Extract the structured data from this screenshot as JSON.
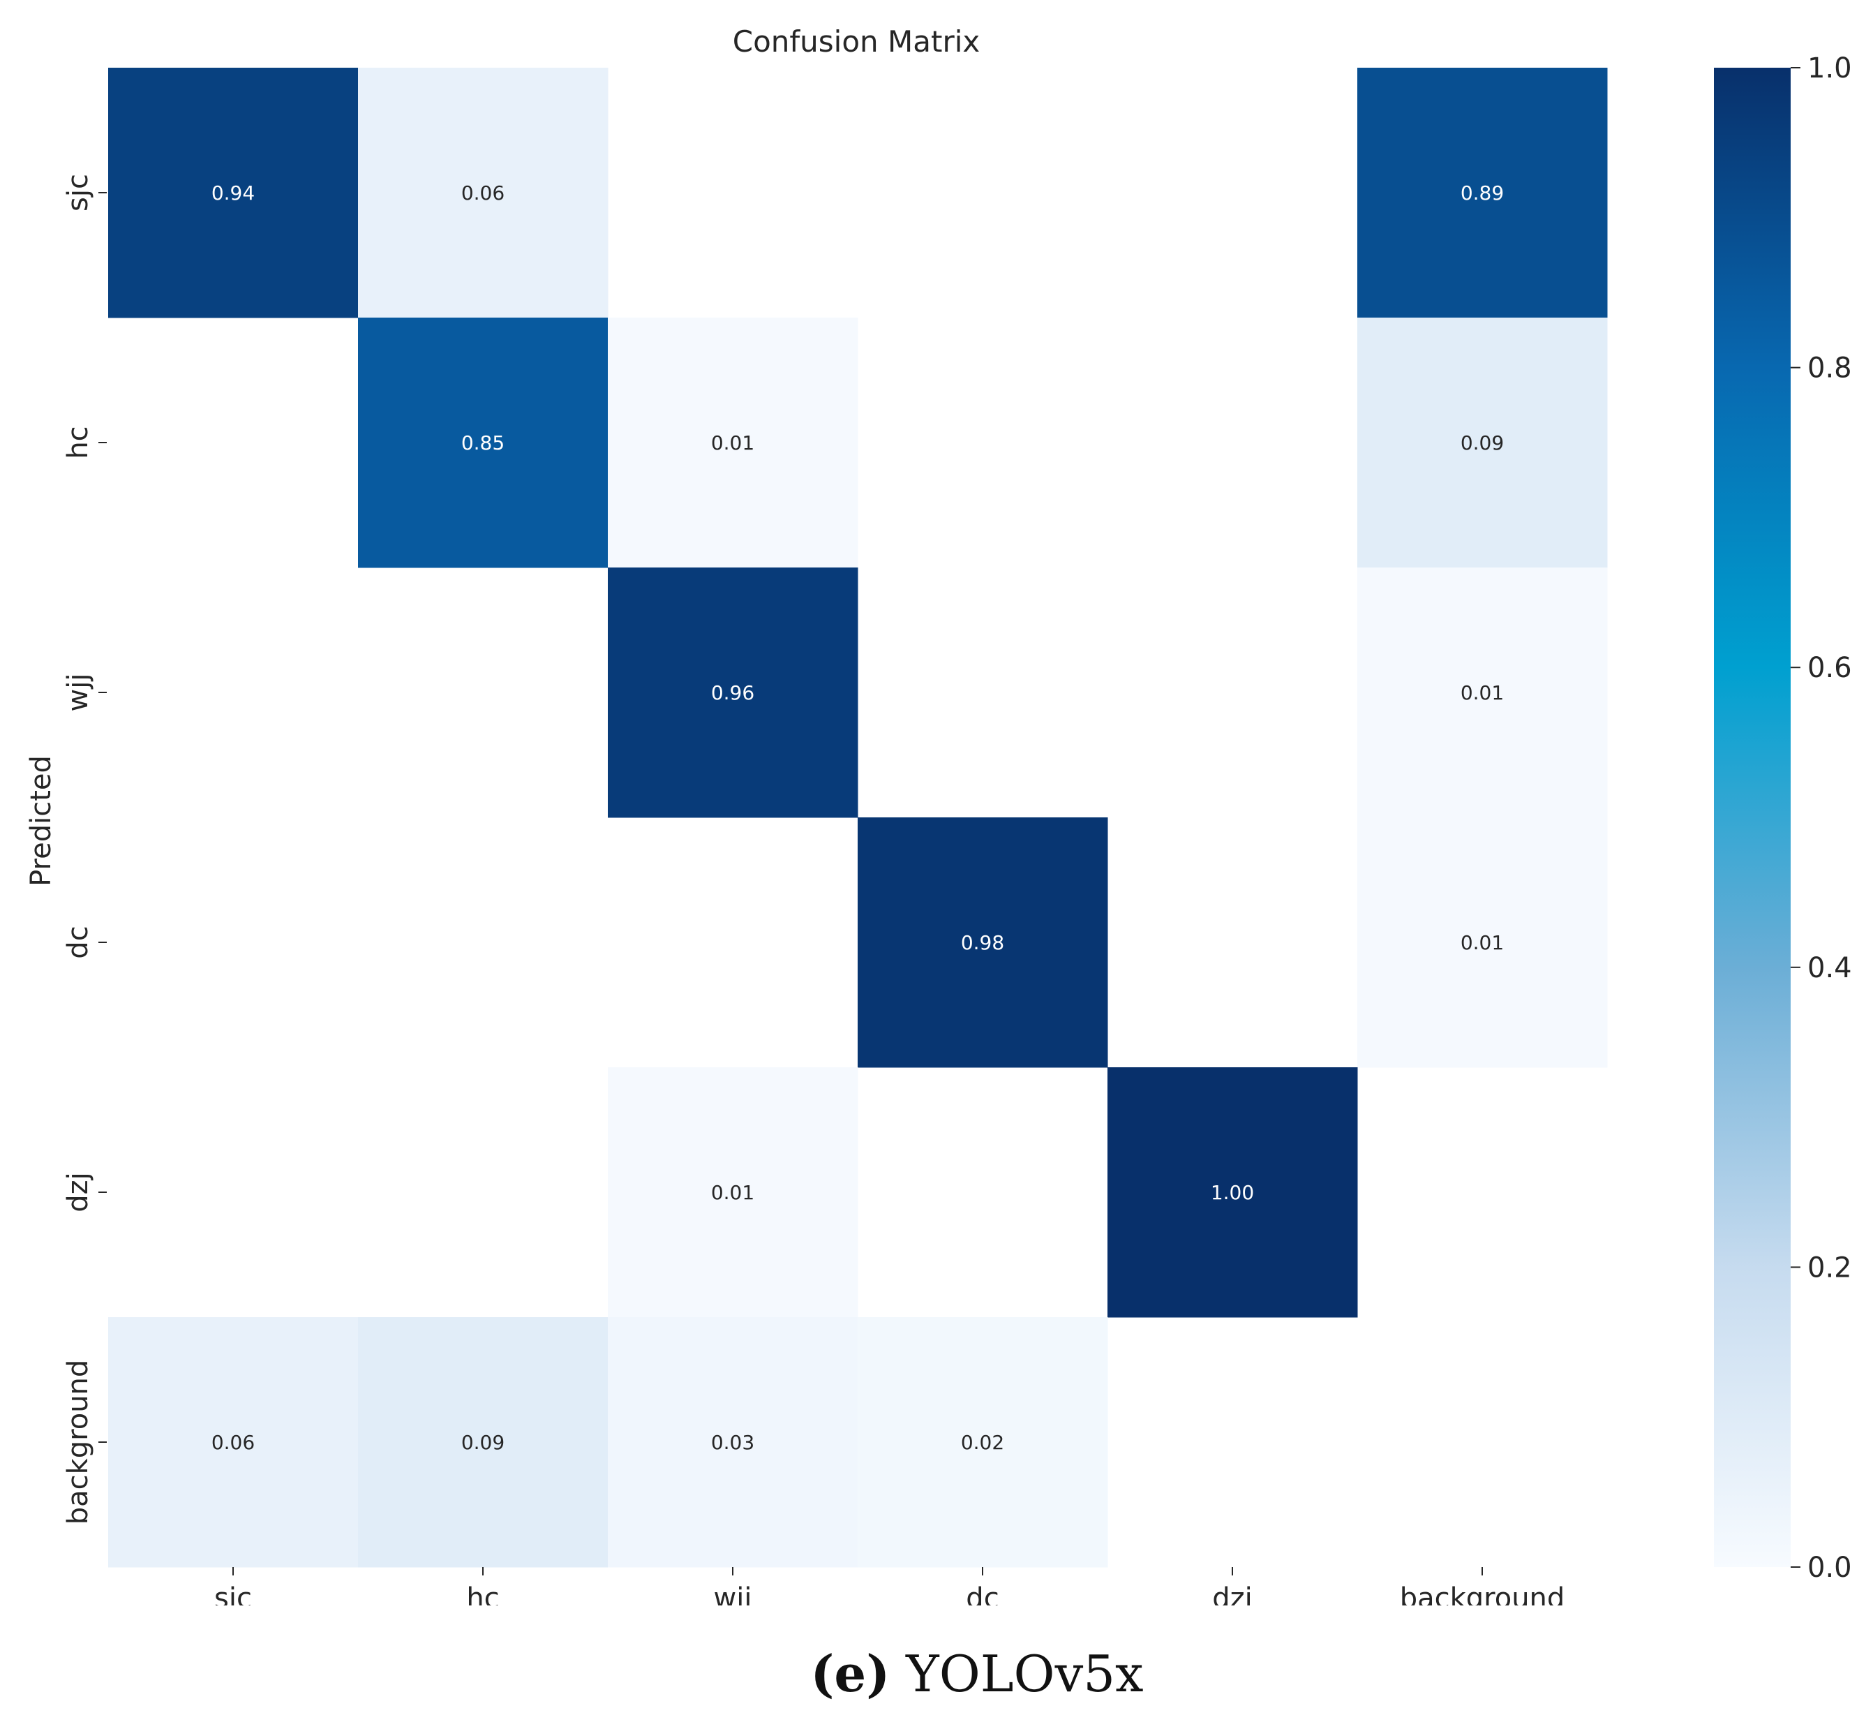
{
  "chart_data": {
    "type": "heatmap",
    "title": "Confusion Matrix",
    "ylabel": "Predicted",
    "xlabel": "",
    "x_categories": [
      "sjc",
      "hc",
      "wjj",
      "dc",
      "dzj",
      "background"
    ],
    "y_categories": [
      "sjc",
      "hc",
      "wjj",
      "dc",
      "dzj",
      "background"
    ],
    "values": [
      [
        0.94,
        0.06,
        null,
        null,
        null,
        0.89
      ],
      [
        null,
        0.85,
        0.01,
        null,
        null,
        0.09
      ],
      [
        null,
        null,
        0.96,
        null,
        null,
        0.01
      ],
      [
        null,
        null,
        null,
        0.98,
        null,
        0.01
      ],
      [
        null,
        null,
        0.01,
        null,
        1.0,
        null
      ],
      [
        0.06,
        0.09,
        0.03,
        0.02,
        null,
        null
      ]
    ],
    "colorbar": {
      "range": [
        0.0,
        1.0
      ],
      "ticks": [
        "0.0",
        "0.2",
        "0.4",
        "0.6",
        "0.8",
        "1.0"
      ],
      "colormap": [
        "#f7fbff",
        "#c6dbef",
        "#6baed6",
        "#00a0d0",
        "#0868b0",
        "#08306b"
      ]
    }
  },
  "caption": {
    "label": "(e)",
    "text": " YOLOv5x"
  }
}
